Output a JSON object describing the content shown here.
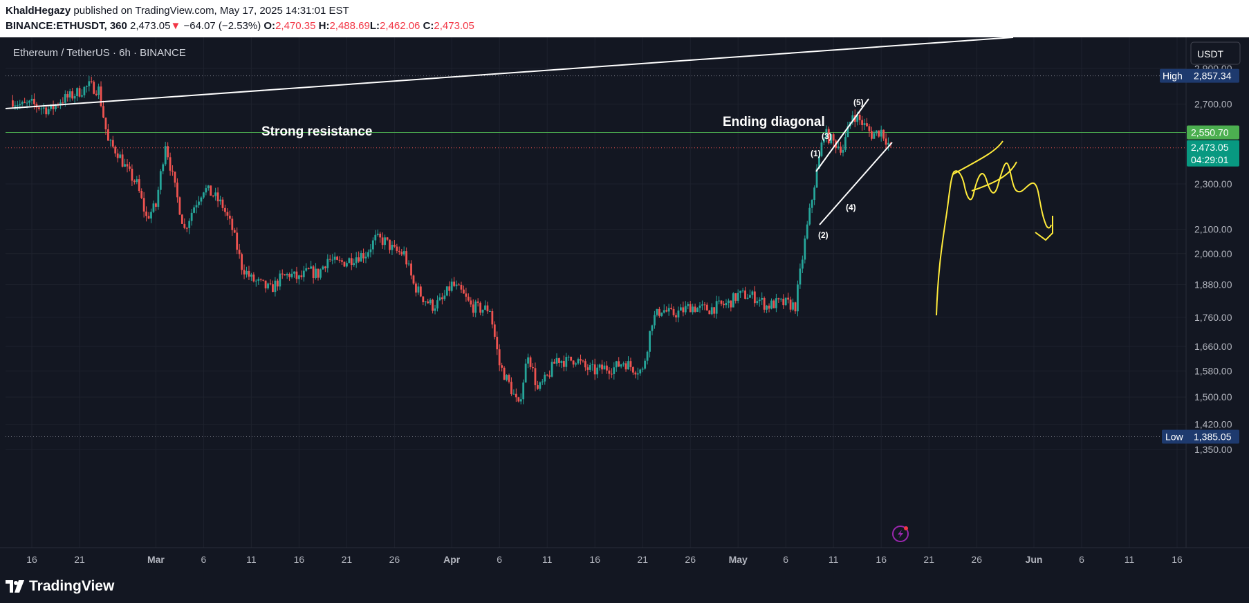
{
  "header": {
    "author": "KhaldHegazy",
    "published": " published on TradingView.com, May 17, 2025 14:31:01 EST",
    "symbol": "BINANCE:ETHUSDT, 360",
    "last": "2,473.05",
    "change_arrow": "▼",
    "change": "−64.07 (−2.53%)",
    "o_label": "O:",
    "o": "2,470.35",
    "h_label": "H:",
    "h": "2,488.69",
    "l_label": "L:",
    "l": "2,462.06",
    "c_label": "C:",
    "c": "2,473.05"
  },
  "legend": "Ethereum / TetherUS · 6h · BINANCE",
  "currency_button": "USDT",
  "annotations": {
    "resistance": "Strong resistance",
    "diagonal": "Ending diagonal",
    "wave1": "(1)",
    "wave2": "(2)",
    "wave3": "(3)",
    "wave4": "(4)",
    "wave5": "(5)"
  },
  "price_labels": {
    "high_tag": "High",
    "high": "2,857.34",
    "low_tag": "Low",
    "low": "1,385.05",
    "resistance_price": "2,550.70",
    "current_price": "2,473.05",
    "countdown": "04:29:01"
  },
  "footer": {
    "brand": "TradingView"
  },
  "colors": {
    "background": "#131722",
    "up": "#26a69a",
    "down": "#ef5350",
    "resistance_line": "#4caf50",
    "drawing": "#ffeb3b",
    "trendline": "#ffffff",
    "high_low_tag": "#1e3a6e"
  },
  "chart_data": {
    "type": "candlestick",
    "title": "Ethereum / TetherUS · 6h · BINANCE",
    "scale": "log",
    "ylim": [
      1300,
      3000
    ],
    "y_ticks": [
      1350,
      1420,
      1500,
      1580,
      1660,
      1760,
      1880,
      2000,
      2100,
      2300,
      2700,
      2900
    ],
    "y_tick_labels": [
      "1,350.00",
      "1,420.00",
      "1,500.00",
      "1,580.00",
      "1,660.00",
      "1,760.00",
      "1,880.00",
      "2,000.00",
      "2,100.00",
      "2,300.00",
      "2,700.00",
      "2,900.00"
    ],
    "x_ticks": [
      "2025-02-16",
      "2025-02-21",
      "2025-03-01",
      "2025-03-06",
      "2025-03-11",
      "2025-03-16",
      "2025-03-21",
      "2025-03-26",
      "2025-04-01",
      "2025-04-06",
      "2025-04-11",
      "2025-04-16",
      "2025-04-21",
      "2025-04-26",
      "2025-05-01",
      "2025-05-06",
      "2025-05-11",
      "2025-05-16",
      "2025-05-21",
      "2025-05-26",
      "2025-06-01",
      "2025-06-06",
      "2025-06-11",
      "2025-06-16"
    ],
    "x_tick_labels": [
      "16",
      "21",
      "Mar",
      "6",
      "11",
      "16",
      "21",
      "26",
      "Apr",
      "6",
      "11",
      "16",
      "21",
      "26",
      "May",
      "6",
      "11",
      "16",
      "21",
      "26",
      "Jun",
      "6",
      "11",
      "16"
    ],
    "path_daily_closes": [
      [
        "2025-02-14",
        2720
      ],
      [
        "2025-02-15",
        2690
      ],
      [
        "2025-02-16",
        2700
      ],
      [
        "2025-02-17",
        2680
      ],
      [
        "2025-02-18",
        2670
      ],
      [
        "2025-02-19",
        2720
      ],
      [
        "2025-02-20",
        2740
      ],
      [
        "2025-02-21",
        2770
      ],
      [
        "2025-02-22",
        2800
      ],
      [
        "2025-02-23",
        2780
      ],
      [
        "2025-02-24",
        2500
      ],
      [
        "2025-02-25",
        2450
      ],
      [
        "2025-02-26",
        2360
      ],
      [
        "2025-02-27",
        2300
      ],
      [
        "2025-02-28",
        2150
      ],
      [
        "2025-03-01",
        2200
      ],
      [
        "2025-03-02",
        2500
      ],
      [
        "2025-03-03",
        2280
      ],
      [
        "2025-03-04",
        2100
      ],
      [
        "2025-03-05",
        2200
      ],
      [
        "2025-03-06",
        2280
      ],
      [
        "2025-03-07",
        2250
      ],
      [
        "2025-03-08",
        2200
      ],
      [
        "2025-03-09",
        2100
      ],
      [
        "2025-03-10",
        1950
      ],
      [
        "2025-03-11",
        1900
      ],
      [
        "2025-03-12",
        1880
      ],
      [
        "2025-03-13",
        1860
      ],
      [
        "2025-03-14",
        1900
      ],
      [
        "2025-03-15",
        1920
      ],
      [
        "2025-03-16",
        1900
      ],
      [
        "2025-03-17",
        1930
      ],
      [
        "2025-03-18",
        1920
      ],
      [
        "2025-03-19",
        1980
      ],
      [
        "2025-03-20",
        1960
      ],
      [
        "2025-03-21",
        1970
      ],
      [
        "2025-03-22",
        1990
      ],
      [
        "2025-03-23",
        2000
      ],
      [
        "2025-03-24",
        2060
      ],
      [
        "2025-03-25",
        2050
      ],
      [
        "2025-03-26",
        2010
      ],
      [
        "2025-03-27",
        2000
      ],
      [
        "2025-03-28",
        1880
      ],
      [
        "2025-03-29",
        1830
      ],
      [
        "2025-03-30",
        1800
      ],
      [
        "2025-03-31",
        1820
      ],
      [
        "2025-04-01",
        1880
      ],
      [
        "2025-04-02",
        1850
      ],
      [
        "2025-04-03",
        1800
      ],
      [
        "2025-04-04",
        1790
      ],
      [
        "2025-04-05",
        1790
      ],
      [
        "2025-04-06",
        1600
      ],
      [
        "2025-04-07",
        1540
      ],
      [
        "2025-04-08",
        1470
      ],
      [
        "2025-04-09",
        1640
      ],
      [
        "2025-04-10",
        1520
      ],
      [
        "2025-04-11",
        1560
      ],
      [
        "2025-04-12",
        1620
      ],
      [
        "2025-04-13",
        1610
      ],
      [
        "2025-04-14",
        1620
      ],
      [
        "2025-04-15",
        1590
      ],
      [
        "2025-04-16",
        1580
      ],
      [
        "2025-04-17",
        1590
      ],
      [
        "2025-04-18",
        1590
      ],
      [
        "2025-04-19",
        1610
      ],
      [
        "2025-04-20",
        1590
      ],
      [
        "2025-04-21",
        1580
      ],
      [
        "2025-04-22",
        1750
      ],
      [
        "2025-04-23",
        1790
      ],
      [
        "2025-04-24",
        1770
      ],
      [
        "2025-04-25",
        1780
      ],
      [
        "2025-04-26",
        1800
      ],
      [
        "2025-04-27",
        1790
      ],
      [
        "2025-04-28",
        1790
      ],
      [
        "2025-04-29",
        1800
      ],
      [
        "2025-04-30",
        1810
      ],
      [
        "2025-05-01",
        1840
      ],
      [
        "2025-05-02",
        1840
      ],
      [
        "2025-05-03",
        1830
      ],
      [
        "2025-05-04",
        1800
      ],
      [
        "2025-05-05",
        1810
      ],
      [
        "2025-05-06",
        1810
      ],
      [
        "2025-05-07",
        1800
      ],
      [
        "2025-05-08",
        2050
      ],
      [
        "2025-05-09",
        2300
      ],
      [
        "2025-05-10",
        2550
      ],
      [
        "2025-05-11",
        2500
      ],
      [
        "2025-05-12",
        2470
      ],
      [
        "2025-05-13",
        2650
      ],
      [
        "2025-05-14",
        2600
      ],
      [
        "2025-05-15",
        2540
      ],
      [
        "2025-05-16",
        2560
      ],
      [
        "2025-05-17",
        2473
      ]
    ],
    "levels": [
      {
        "label": "High",
        "value": 2857.34
      },
      {
        "label": "Low",
        "value": 1385.05
      },
      {
        "label": "",
        "value": 2550.7
      }
    ],
    "last_price": 2473.05
  }
}
